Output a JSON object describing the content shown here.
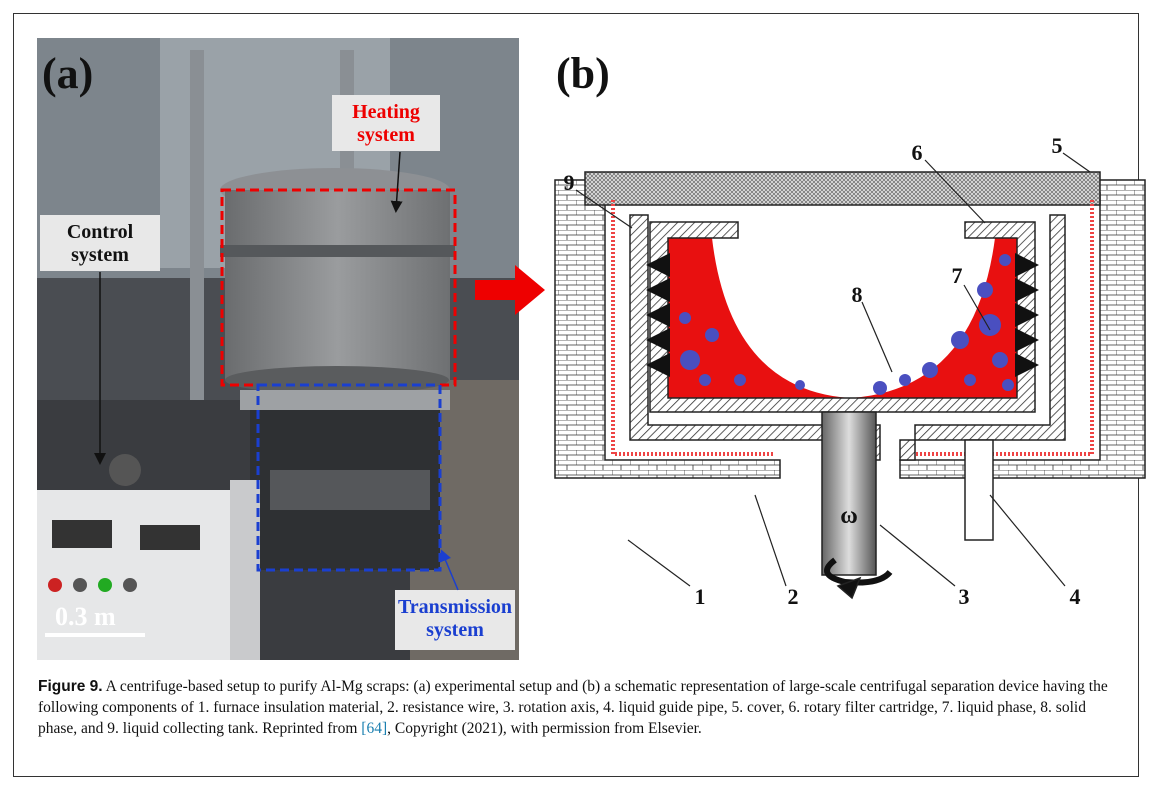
{
  "panel_a": {
    "label": "(a)",
    "heating": "Heating\nsystem",
    "control": "Control\nsystem",
    "transmission": "Transmission\nsystem",
    "scale": "0.3 m"
  },
  "panel_b": {
    "label": "(b)",
    "parts": [
      "1",
      "2",
      "3",
      "4",
      "5",
      "6",
      "7",
      "8",
      "9"
    ],
    "omega": "ω"
  },
  "caption": {
    "label": "Figure 9.",
    "text": " A centrifuge-based setup to purify Al-Mg scraps: (a) experimental setup and (b) a schematic representation of large-scale centrifugal separation device having the following components of 1. furnace insulation material, 2. resistance wire, 3. rotation axis, 4. liquid guide pipe, 5. cover, 6. rotary filter cartridge, 7. liquid phase, 8. solid phase, and 9. liquid collecting tank. Reprinted from ",
    "reference": "[64]",
    "text_end": ", Copyright (2021), with permission from Elsevier."
  }
}
